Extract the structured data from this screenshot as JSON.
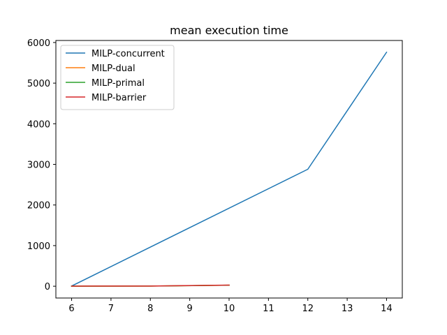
{
  "chart_data": {
    "type": "line",
    "title": "mean execution time",
    "xlabel": "",
    "ylabel": "",
    "xlim": [
      5.6,
      14.4
    ],
    "ylim": [
      -290,
      6050
    ],
    "xticks": [
      6,
      7,
      8,
      9,
      10,
      11,
      12,
      13,
      14
    ],
    "yticks": [
      0,
      1000,
      2000,
      3000,
      4000,
      5000,
      6000
    ],
    "grid": false,
    "legend_position": "top-left",
    "series": [
      {
        "name": "MILP-concurrent",
        "color": "#1f77b4",
        "x": [
          6,
          12,
          14
        ],
        "y": [
          5,
          2880,
          5760
        ]
      },
      {
        "name": "MILP-dual",
        "color": "#ff7f0e",
        "x": [
          6,
          8,
          10
        ],
        "y": [
          2,
          4,
          25
        ]
      },
      {
        "name": "MILP-primal",
        "color": "#2ca02c",
        "x": [
          6,
          8,
          10
        ],
        "y": [
          2,
          4,
          25
        ]
      },
      {
        "name": "MILP-barrier",
        "color": "#d62728",
        "x": [
          6,
          8,
          10
        ],
        "y": [
          3,
          5,
          28
        ]
      }
    ]
  }
}
